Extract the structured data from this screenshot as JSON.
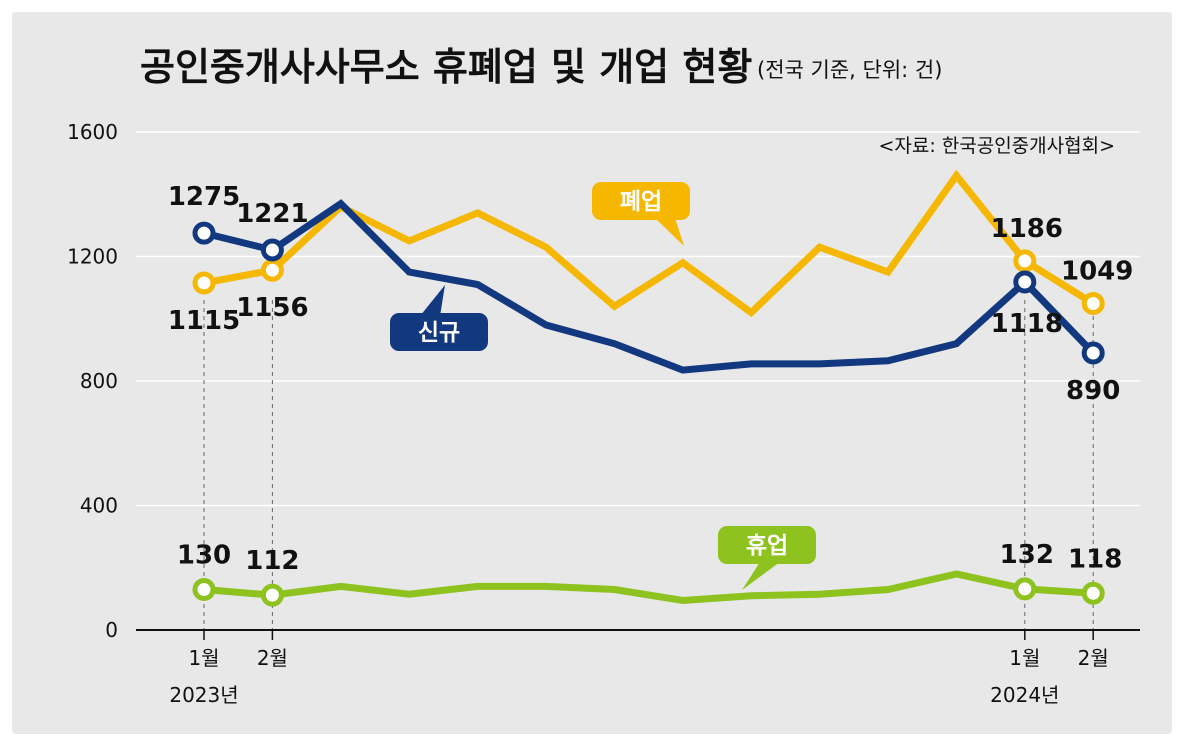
{
  "chart_data": {
    "type": "line",
    "title": "공인중개사사무소 휴폐업 및 개업 현황",
    "subtitle": "(전국 기준, 단위: 건)",
    "source": "<자료: 한국공인중개사협회>",
    "ylim": [
      0,
      1600
    ],
    "yticks": [
      "0",
      "400",
      "800",
      "1200",
      "1600"
    ],
    "x_labels": [
      {
        "index": 0,
        "month": "1월",
        "year": "2023년"
      },
      {
        "index": 1,
        "month": "2월",
        "year": ""
      },
      {
        "index": 12,
        "month": "1월",
        "year": "2024년"
      },
      {
        "index": 13,
        "month": "2월",
        "year": ""
      }
    ],
    "grid": true,
    "series": [
      {
        "name": "폐업",
        "color": "#f5b700",
        "values": [
          1115,
          1156,
          1360,
          1250,
          1340,
          1230,
          1040,
          1180,
          1020,
          1230,
          1150,
          1460,
          1186,
          1049
        ],
        "labels": [
          {
            "index": 0,
            "text": "1115"
          },
          {
            "index": 1,
            "text": "1156"
          },
          {
            "index": 12,
            "text": "1186"
          },
          {
            "index": 13,
            "text": "1049"
          }
        ]
      },
      {
        "name": "신규",
        "color": "#12387f",
        "values": [
          1275,
          1221,
          1370,
          1150,
          1110,
          980,
          920,
          835,
          855,
          855,
          865,
          920,
          1118,
          890
        ],
        "labels": [
          {
            "index": 0,
            "text": "1275"
          },
          {
            "index": 1,
            "text": "1221"
          },
          {
            "index": 12,
            "text": "1118"
          },
          {
            "index": 13,
            "text": "890"
          }
        ]
      },
      {
        "name": "휴업",
        "color": "#8dc21f",
        "values": [
          130,
          112,
          140,
          115,
          140,
          140,
          130,
          95,
          110,
          115,
          130,
          180,
          132,
          118
        ],
        "labels": [
          {
            "index": 0,
            "text": "130"
          },
          {
            "index": 1,
            "text": "112"
          },
          {
            "index": 12,
            "text": "132"
          },
          {
            "index": 13,
            "text": "118"
          }
        ]
      }
    ]
  }
}
